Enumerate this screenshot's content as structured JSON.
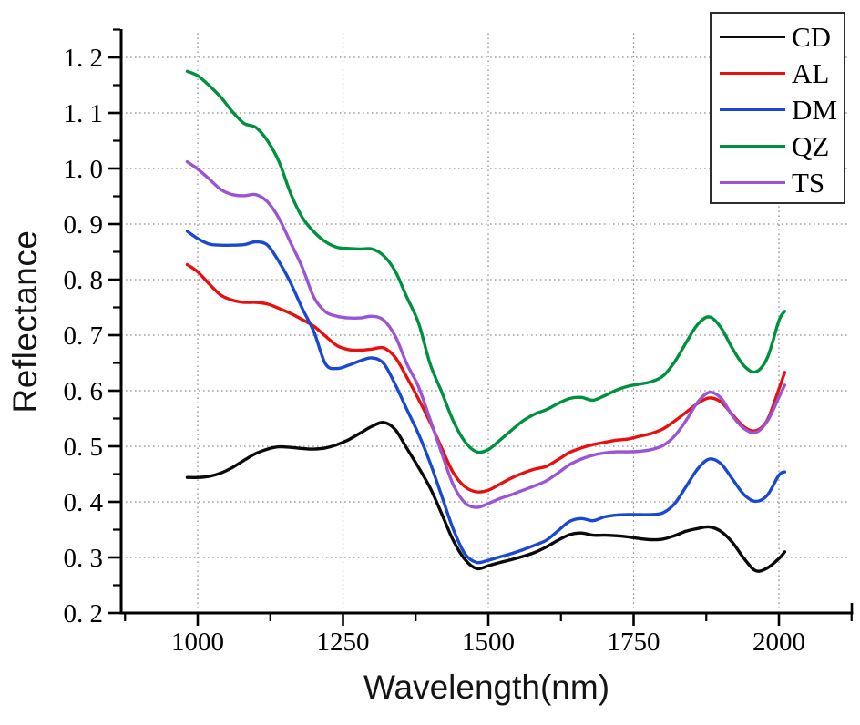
{
  "figure": {
    "background": "#ffffff"
  },
  "axes": {
    "x_title": "Wavelength(nm)",
    "y_title": "Reflectance"
  },
  "legend": {
    "position": "top-right"
  },
  "chart_data": {
    "type": "line",
    "title": "",
    "xlabel": "Wavelength(nm)",
    "ylabel": "Reflectance",
    "xlim": [
      868,
      2125
    ],
    "ylim": [
      0.2,
      1.25
    ],
    "grid": "dotted",
    "grid_color": "#8f8f8f",
    "legend_position": "top-right",
    "x_ticks": {
      "values": [
        1000,
        1250,
        1500,
        1750,
        2000
      ],
      "labels": [
        "1000",
        "1250",
        "1500",
        "1750",
        "2000"
      ],
      "minor": [
        875,
        1125,
        1375,
        1625,
        1875,
        2125
      ]
    },
    "y_ticks": {
      "values": [
        0.2,
        0.3,
        0.4,
        0.5,
        0.6,
        0.7,
        0.8,
        0.9,
        1.0,
        1.1,
        1.2
      ],
      "labels": [
        "0. 2",
        "0. 3",
        "0. 4",
        "0. 5",
        "0. 6",
        "0. 7",
        "0. 8",
        "0. 9",
        "1. 0",
        "1. 1",
        "1. 2"
      ],
      "minor": [
        0.25,
        0.35,
        0.45,
        0.55,
        0.65,
        0.75,
        0.85,
        0.95,
        1.05,
        1.15,
        1.25
      ]
    },
    "x": [
      982,
      1000,
      1020,
      1040,
      1060,
      1080,
      1100,
      1120,
      1140,
      1160,
      1180,
      1200,
      1220,
      1240,
      1260,
      1280,
      1300,
      1320,
      1340,
      1360,
      1380,
      1400,
      1420,
      1440,
      1460,
      1480,
      1500,
      1520,
      1540,
      1560,
      1580,
      1600,
      1620,
      1640,
      1660,
      1680,
      1700,
      1720,
      1740,
      1760,
      1780,
      1800,
      1820,
      1840,
      1860,
      1880,
      1900,
      1920,
      1940,
      1960,
      1980,
      2000,
      2010
    ],
    "series": [
      {
        "name": "CD",
        "color": "#0a0a0a",
        "values": [
          0.444,
          0.444,
          0.446,
          0.452,
          0.462,
          0.475,
          0.487,
          0.495,
          0.499,
          0.498,
          0.496,
          0.495,
          0.497,
          0.503,
          0.512,
          0.524,
          0.536,
          0.543,
          0.53,
          0.496,
          0.462,
          0.425,
          0.378,
          0.33,
          0.296,
          0.28,
          0.285,
          0.291,
          0.296,
          0.302,
          0.309,
          0.319,
          0.331,
          0.341,
          0.344,
          0.34,
          0.34,
          0.339,
          0.337,
          0.334,
          0.332,
          0.333,
          0.339,
          0.347,
          0.352,
          0.355,
          0.347,
          0.327,
          0.298,
          0.276,
          0.281,
          0.298,
          0.31
        ]
      },
      {
        "name": "AL",
        "color": "#e8100e",
        "values": [
          0.827,
          0.814,
          0.792,
          0.772,
          0.763,
          0.759,
          0.759,
          0.756,
          0.748,
          0.739,
          0.728,
          0.716,
          0.698,
          0.681,
          0.674,
          0.673,
          0.675,
          0.677,
          0.66,
          0.624,
          0.585,
          0.543,
          0.496,
          0.452,
          0.427,
          0.418,
          0.421,
          0.432,
          0.443,
          0.452,
          0.459,
          0.464,
          0.476,
          0.489,
          0.497,
          0.503,
          0.507,
          0.511,
          0.513,
          0.518,
          0.523,
          0.531,
          0.545,
          0.561,
          0.577,
          0.587,
          0.58,
          0.557,
          0.535,
          0.528,
          0.547,
          0.603,
          0.633
        ]
      },
      {
        "name": "DM",
        "color": "#1a49cf",
        "values": [
          0.887,
          0.874,
          0.864,
          0.862,
          0.862,
          0.863,
          0.868,
          0.862,
          0.832,
          0.794,
          0.748,
          0.706,
          0.648,
          0.64,
          0.646,
          0.654,
          0.659,
          0.649,
          0.611,
          0.566,
          0.522,
          0.47,
          0.41,
          0.35,
          0.306,
          0.291,
          0.295,
          0.301,
          0.307,
          0.314,
          0.322,
          0.331,
          0.348,
          0.365,
          0.37,
          0.366,
          0.373,
          0.376,
          0.377,
          0.377,
          0.377,
          0.38,
          0.396,
          0.427,
          0.459,
          0.477,
          0.469,
          0.441,
          0.413,
          0.401,
          0.412,
          0.448,
          0.454
        ]
      },
      {
        "name": "QZ",
        "color": "#00913f",
        "values": [
          1.175,
          1.167,
          1.149,
          1.128,
          1.102,
          1.081,
          1.074,
          1.05,
          1.012,
          0.955,
          0.912,
          0.886,
          0.868,
          0.858,
          0.856,
          0.855,
          0.855,
          0.843,
          0.815,
          0.768,
          0.722,
          0.648,
          0.597,
          0.545,
          0.508,
          0.49,
          0.494,
          0.511,
          0.529,
          0.546,
          0.558,
          0.566,
          0.577,
          0.586,
          0.588,
          0.583,
          0.591,
          0.601,
          0.608,
          0.612,
          0.616,
          0.626,
          0.651,
          0.686,
          0.719,
          0.733,
          0.714,
          0.676,
          0.645,
          0.634,
          0.659,
          0.726,
          0.743
        ]
      },
      {
        "name": "TS",
        "color": "#9b55d4",
        "values": [
          1.012,
          0.999,
          0.981,
          0.962,
          0.953,
          0.951,
          0.953,
          0.94,
          0.91,
          0.866,
          0.822,
          0.768,
          0.742,
          0.734,
          0.731,
          0.731,
          0.734,
          0.727,
          0.698,
          0.648,
          0.607,
          0.548,
          0.487,
          0.43,
          0.398,
          0.39,
          0.397,
          0.406,
          0.413,
          0.421,
          0.429,
          0.438,
          0.452,
          0.467,
          0.477,
          0.484,
          0.488,
          0.49,
          0.49,
          0.491,
          0.494,
          0.501,
          0.518,
          0.546,
          0.579,
          0.597,
          0.587,
          0.555,
          0.532,
          0.525,
          0.545,
          0.588,
          0.61
        ]
      }
    ]
  }
}
